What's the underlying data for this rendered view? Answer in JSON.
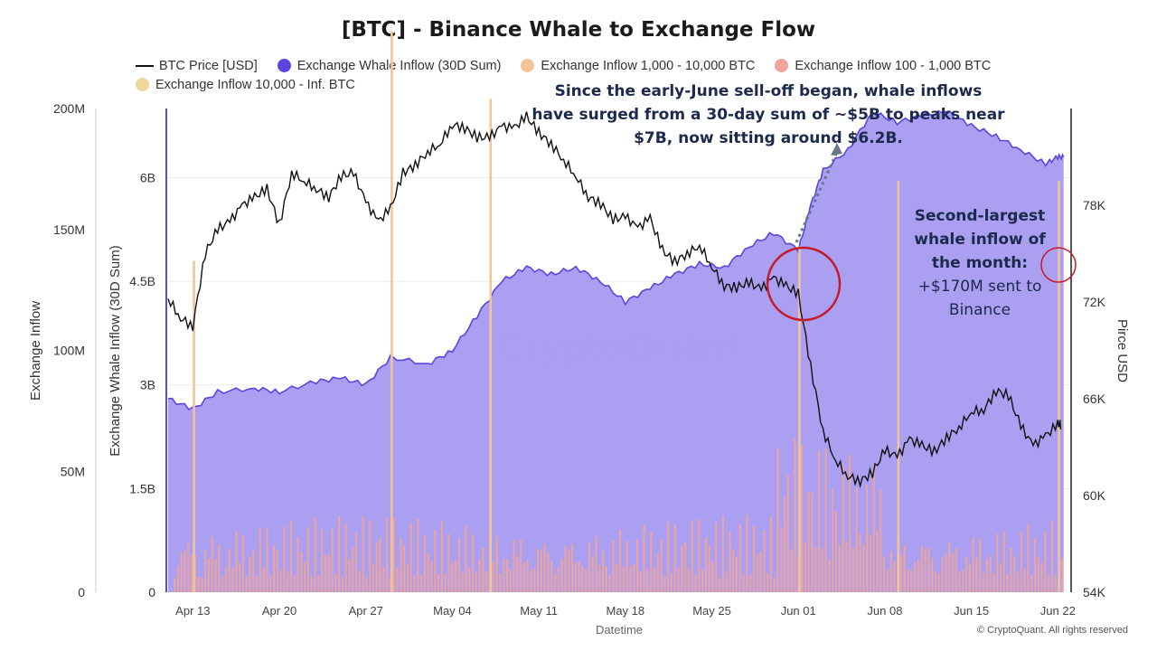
{
  "chart_data": {
    "type": "combo",
    "title": "[BTC] - Binance Whale to Exchange Flow",
    "xlabel": "Datetime",
    "ylabel_left_outer": "Exchange Inflow",
    "ylabel_left_inner": "Exchange Whale Inflow (30D Sum)",
    "ylabel_right": "Pirce USD",
    "x_ticks": [
      "Apr 13",
      "Apr 20",
      "Apr 27",
      "May 04",
      "May 11",
      "May 18",
      "May 25",
      "Jun 01",
      "Jun 08",
      "Jun 15",
      "Jun 22"
    ],
    "y_outer_ticks": [
      "0",
      "50M",
      "100M",
      "150M",
      "200M"
    ],
    "y_outer_range": [
      0,
      200000000
    ],
    "y_inner_ticks": [
      "0",
      "1.5B",
      "3B",
      "4.5B",
      "6B"
    ],
    "y_inner_range": [
      0,
      7000000000
    ],
    "y_right_ticks": [
      "54K",
      "60K",
      "66K",
      "72K",
      "78K"
    ],
    "y_right_range": [
      54000,
      84000
    ],
    "legend": [
      {
        "name": "BTC Price [USD]",
        "color": "#111111",
        "shape": "line"
      },
      {
        "name": "Exchange Whale Inflow (30D Sum)",
        "color": "#5b45e0",
        "shape": "dot"
      },
      {
        "name": "Exchange Inflow 1,000 - 10,000 BTC",
        "color": "#f1c49a",
        "shape": "dot"
      },
      {
        "name": "Exchange Inflow 100 - 1,000 BTC",
        "color": "#f0a39a",
        "shape": "dot"
      },
      {
        "name": "Exchange Inflow 10,000 - Inf. BTC",
        "color": "#ecd898",
        "shape": "dot"
      }
    ],
    "series": [
      {
        "name": "Exchange Whale Inflow (30D Sum)",
        "axis": "inner",
        "style": "area",
        "x": [
          "2024-04-11",
          "2024-04-13",
          "2024-04-15",
          "2024-04-18",
          "2024-04-20",
          "2024-04-23",
          "2024-04-25",
          "2024-04-27",
          "2024-04-29",
          "2024-05-02",
          "2024-05-04",
          "2024-05-06",
          "2024-05-08",
          "2024-05-10",
          "2024-05-12",
          "2024-05-14",
          "2024-05-16",
          "2024-05-18",
          "2024-05-20",
          "2024-05-22",
          "2024-05-24",
          "2024-05-26",
          "2024-05-28",
          "2024-05-30",
          "2024-06-01",
          "2024-06-02",
          "2024-06-03",
          "2024-06-05",
          "2024-06-07",
          "2024-06-09",
          "2024-06-11",
          "2024-06-13",
          "2024-06-15",
          "2024-06-17",
          "2024-06-19",
          "2024-06-21",
          "2024-06-22"
        ],
        "y": [
          2800000000.0,
          2650000000.0,
          2900000000.0,
          2950000000.0,
          2900000000.0,
          3050000000.0,
          3100000000.0,
          3000000000.0,
          3400000000.0,
          3300000000.0,
          3500000000.0,
          4000000000.0,
          4500000000.0,
          4700000000.0,
          4600000000.0,
          4700000000.0,
          4500000000.0,
          4200000000.0,
          4400000000.0,
          4600000000.0,
          4750000000.0,
          4700000000.0,
          5000000000.0,
          5200000000.0,
          4950000000.0,
          5600000000.0,
          6100000000.0,
          6400000000.0,
          6950000000.0,
          6800000000.0,
          6900000000.0,
          6950000000.0,
          6750000000.0,
          6600000000.0,
          6400000000.0,
          6200000000.0,
          6300000000.0
        ]
      },
      {
        "name": "BTC Price [USD]",
        "axis": "right",
        "style": "line",
        "x": [
          "2024-04-11",
          "2024-04-12",
          "2024-04-13",
          "2024-04-14",
          "2024-04-15",
          "2024-04-16",
          "2024-04-17",
          "2024-04-18",
          "2024-04-19",
          "2024-04-20",
          "2024-04-21",
          "2024-04-22",
          "2024-04-23",
          "2024-04-24",
          "2024-04-25",
          "2024-04-26",
          "2024-04-27",
          "2024-04-28",
          "2024-04-29",
          "2024-04-30",
          "2024-05-01",
          "2024-05-02",
          "2024-05-03",
          "2024-05-04",
          "2024-05-05",
          "2024-05-06",
          "2024-05-07",
          "2024-05-08",
          "2024-05-09",
          "2024-05-10",
          "2024-05-11",
          "2024-05-12",
          "2024-05-13",
          "2024-05-14",
          "2024-05-15",
          "2024-05-16",
          "2024-05-17",
          "2024-05-18",
          "2024-05-19",
          "2024-05-20",
          "2024-05-21",
          "2024-05-22",
          "2024-05-23",
          "2024-05-24",
          "2024-05-25",
          "2024-05-26",
          "2024-05-27",
          "2024-05-28",
          "2024-05-29",
          "2024-05-30",
          "2024-05-31",
          "2024-06-01",
          "2024-06-02",
          "2024-06-03",
          "2024-06-04",
          "2024-06-05",
          "2024-06-06",
          "2024-06-07",
          "2024-06-08",
          "2024-06-09",
          "2024-06-10",
          "2024-06-11",
          "2024-06-12",
          "2024-06-13",
          "2024-06-14",
          "2024-06-15",
          "2024-06-16",
          "2024-06-17",
          "2024-06-18",
          "2024-06-19",
          "2024-06-20",
          "2024-06-21",
          "2024-06-22"
        ],
        "y": [
          72200,
          71000,
          70500,
          75000,
          76500,
          77000,
          78000,
          78500,
          79000,
          76800,
          80000,
          79500,
          79000,
          78500,
          79800,
          80000,
          78200,
          77000,
          77800,
          80000,
          80500,
          81300,
          81800,
          83000,
          82800,
          82200,
          82200,
          82900,
          82800,
          83500,
          82500,
          81800,
          80800,
          79800,
          78500,
          78100,
          77100,
          77300,
          76600,
          77200,
          75200,
          74500,
          75000,
          75500,
          74200,
          73000,
          72900,
          73200,
          72800,
          73500,
          73000,
          72500,
          68000,
          64000,
          62200,
          61200,
          60900,
          61400,
          62800,
          62400,
          63500,
          63100,
          62700,
          63600,
          64200,
          65200,
          65300,
          66500,
          66200,
          64300,
          63100,
          63700,
          64400
        ]
      },
      {
        "name": "Exchange Inflow 100 - 1,000 BTC",
        "axis": "outer",
        "style": "bars",
        "note": "dense daily bars, typically 5M-60M, spikes near Jun 01-05"
      },
      {
        "name": "Exchange Inflow 1,000 - 10,000 BTC",
        "axis": "outer",
        "style": "bars",
        "spikes_x": [
          "2024-04-13",
          "2024-04-29",
          "2024-05-07",
          "2024-06-01",
          "2024-06-09",
          "2024-06-22"
        ],
        "spikes_y": [
          137000000,
          232000000,
          204000000,
          143000000,
          170000000,
          170000000
        ]
      }
    ],
    "annotations": [
      {
        "text": "CryptoQuant",
        "kind": "watermark"
      }
    ],
    "grid": true,
    "legend_position": "top"
  },
  "notes": {
    "note1": [
      "Since the early-June sell-off began, whale inflows",
      "have surged from a 30-day sum of ~$5B to peaks near",
      "$7B, now sitting around $6.2B."
    ],
    "note2_bold": [
      "Second-largest",
      "whale inflow of",
      "the month:"
    ],
    "note2_text": [
      "+$170M sent to",
      "Binance"
    ]
  },
  "copyright": "© CryptoQuant. All rights reserved"
}
